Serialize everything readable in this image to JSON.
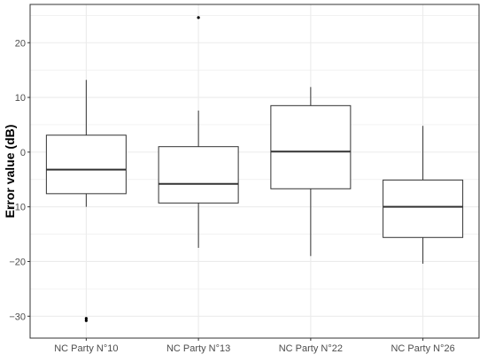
{
  "chart_data": {
    "type": "box",
    "title": "",
    "xlabel": "",
    "ylabel": "Error value (dB)",
    "categories": [
      "NC Party N°10",
      "NC Party N°13",
      "NC Party N°22",
      "NC Party N°26"
    ],
    "boxes": [
      {
        "category": "NC Party N°10",
        "whisker_low": -10.0,
        "q1": -7.6,
        "median": -3.2,
        "q3": 3.1,
        "whisker_high": 13.2,
        "outliers": [
          -30.4,
          -30.8
        ]
      },
      {
        "category": "NC Party N°13",
        "whisker_low": -17.5,
        "q1": -9.3,
        "median": -5.8,
        "q3": 1.0,
        "whisker_high": 7.6,
        "outliers": [
          24.6
        ]
      },
      {
        "category": "NC Party N°22",
        "whisker_low": -19.0,
        "q1": -6.7,
        "median": 0.1,
        "q3": 8.5,
        "whisker_high": 11.9,
        "outliers": []
      },
      {
        "category": "NC Party N°26",
        "whisker_low": -20.4,
        "q1": -15.6,
        "median": -10.0,
        "q3": -5.1,
        "whisker_high": 4.8,
        "outliers": []
      }
    ],
    "ylim": [
      -34,
      27
    ],
    "yticks": [
      -30,
      -20,
      -10,
      0,
      10,
      20
    ],
    "grid": true,
    "colors": {
      "box_fill": "#ffffff",
      "stroke": "#333333",
      "grid": "#ebebeb",
      "outlier": "#000000"
    }
  }
}
